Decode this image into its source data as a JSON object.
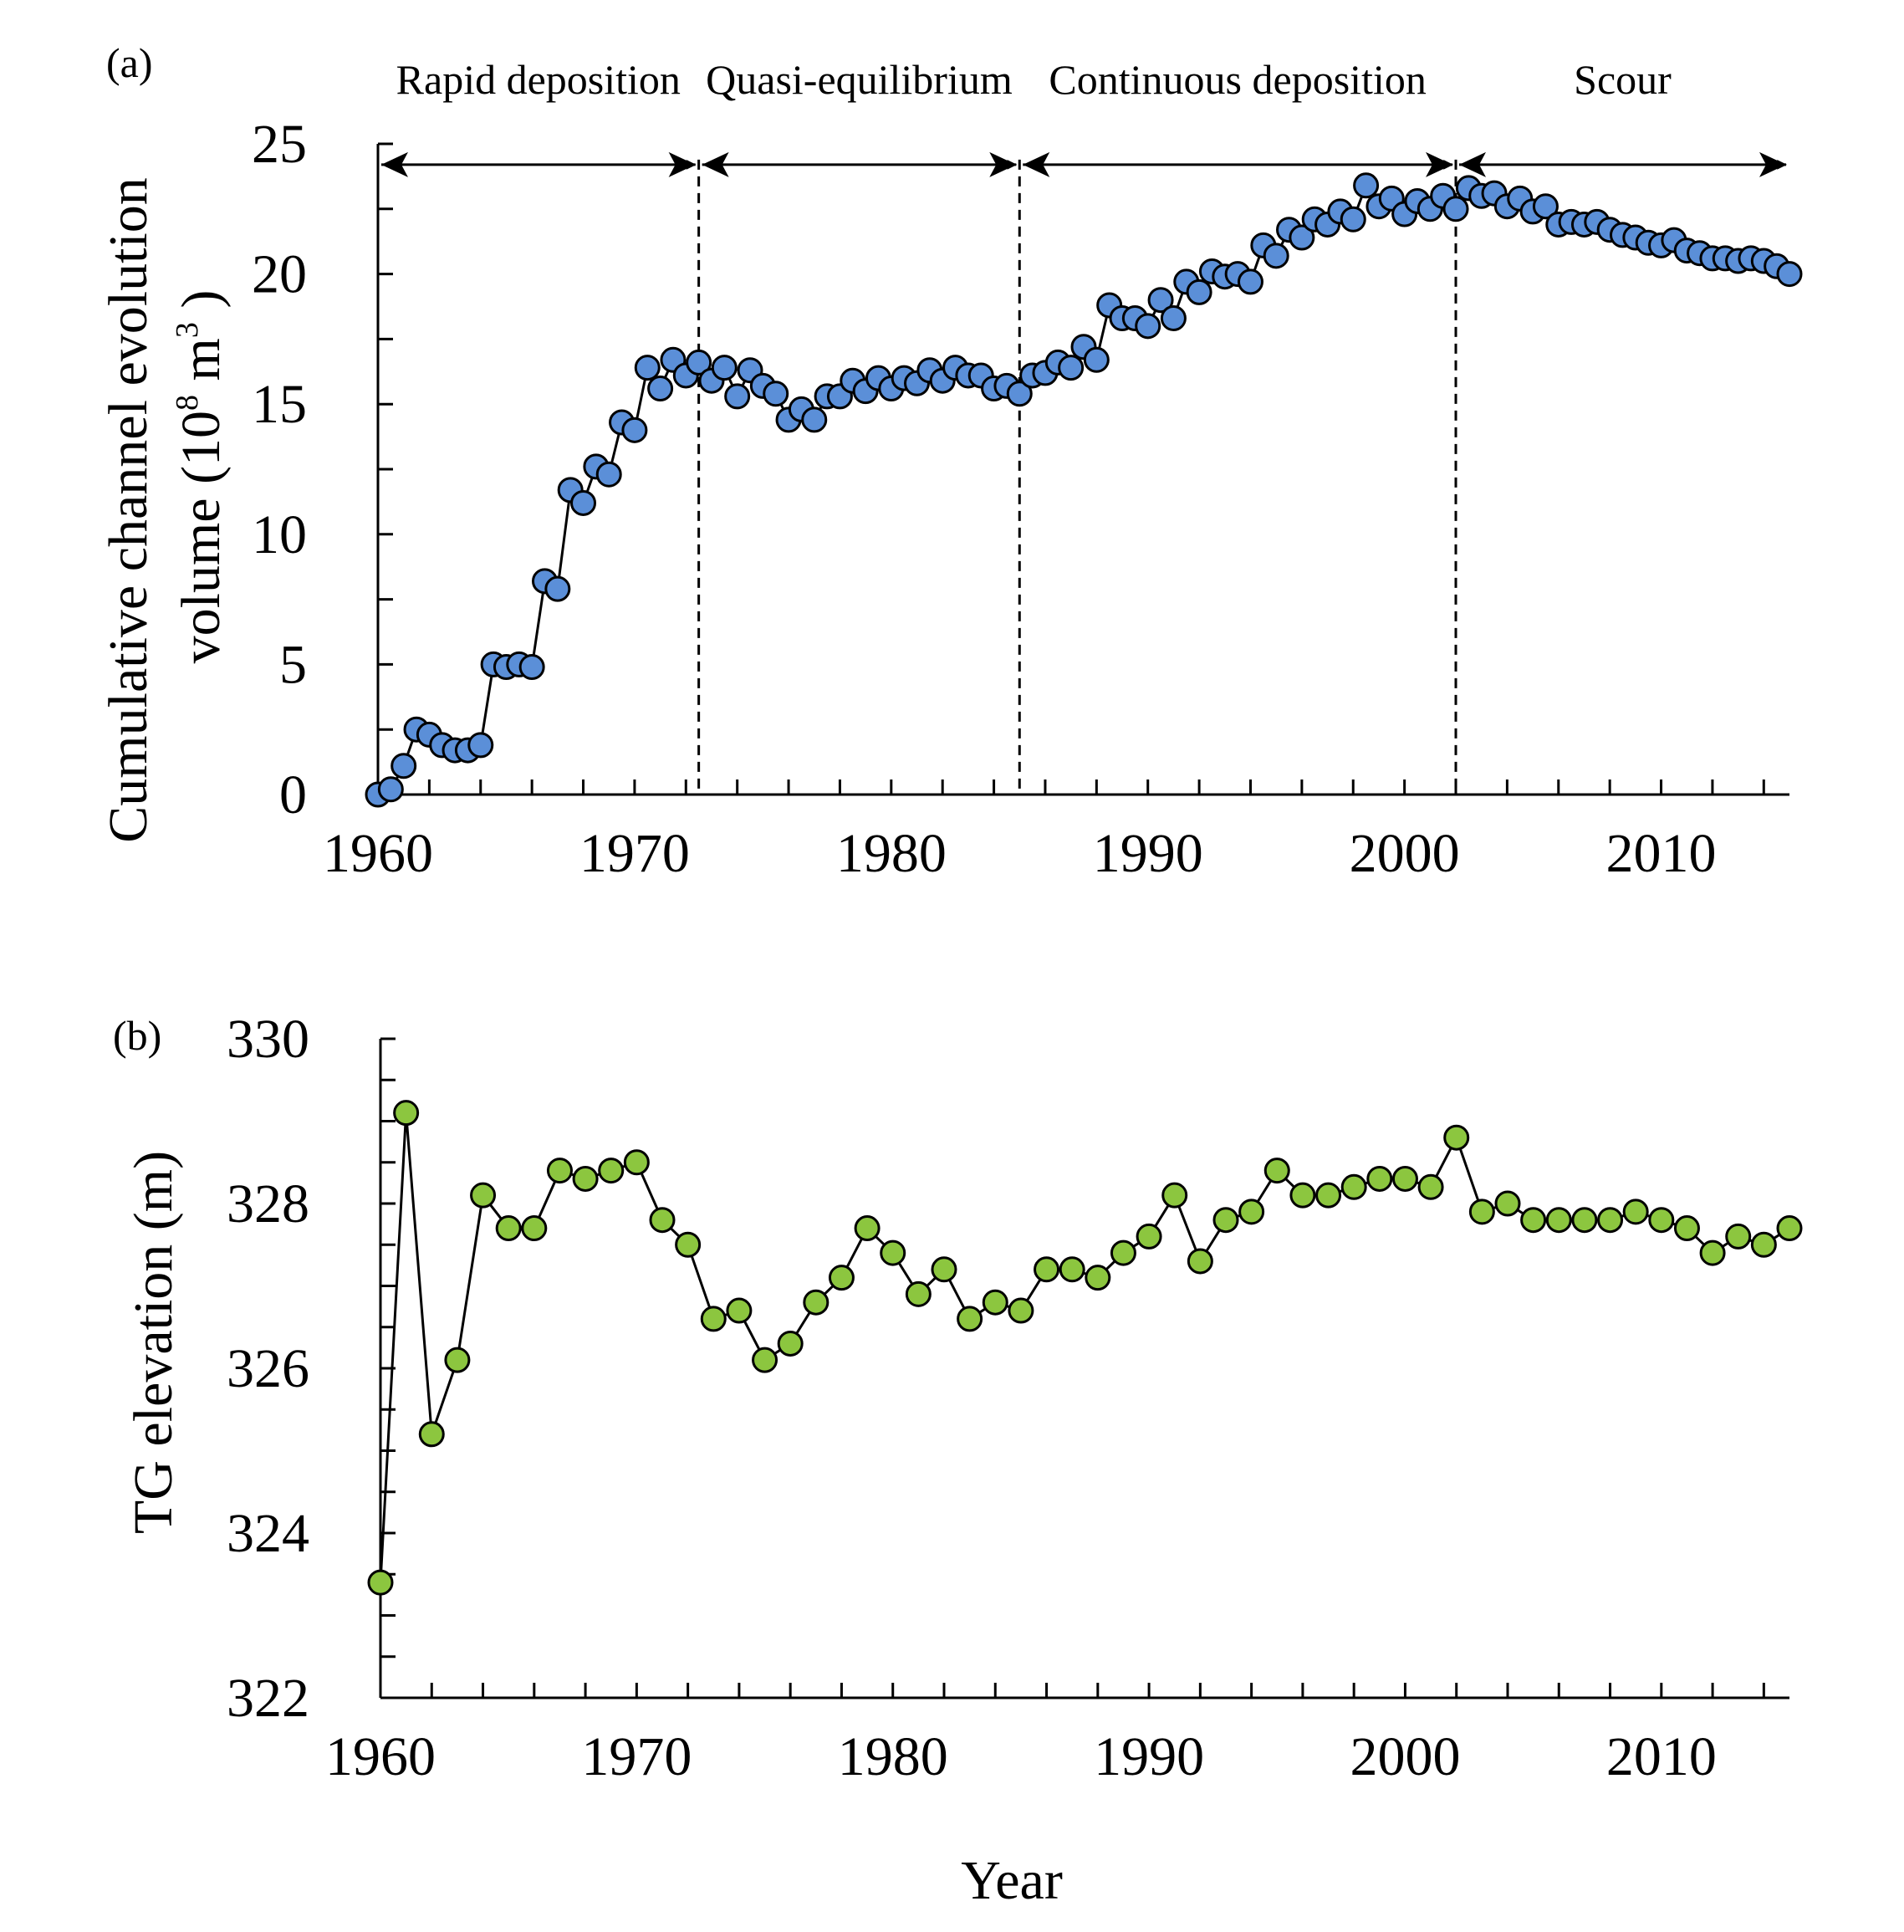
{
  "figure": {
    "xlabel": "Year",
    "line_color": "#000000",
    "charts": [
      {
        "panel_label": "(a)",
        "ylabel_line1": "Cumulative  channel  evolution",
        "ylabel_line2_prefix": "volume  (10",
        "ylabel_sup1": "8",
        "ylabel_mid": " m",
        "ylabel_sup2": "3",
        "ylabel_suffix": " )"
      },
      {
        "panel_label": "(b)",
        "ylabel": "TG elevation  (m)"
      }
    ]
  },
  "chart_data": [
    {
      "type": "line",
      "title": "",
      "xlabel": "",
      "ylabel": "Cumulative channel evolution volume (10^8 m^3)",
      "xlim": [
        1960,
        2015
      ],
      "ylim": [
        0,
        25
      ],
      "xticks": [
        1960,
        1970,
        1980,
        1990,
        2000,
        2010
      ],
      "yticks": [
        0,
        5,
        10,
        15,
        20,
        25
      ],
      "marker_color": "#5b8fd8",
      "grid": false,
      "phases": [
        {
          "label": "Rapid deposition",
          "start": 1960,
          "end": 1972.5
        },
        {
          "label": "Quasi-equilibrium",
          "start": 1972.5,
          "end": 1985
        },
        {
          "label": "Continuous deposition",
          "start": 1985,
          "end": 2002
        },
        {
          "label": "Scour",
          "start": 2002,
          "end": 2015
        }
      ],
      "phase_boundaries": [
        1972.5,
        1985,
        2002
      ],
      "series": [
        {
          "x": [
            1960,
            1960.5,
            1961,
            1961.5,
            1962,
            1962.5,
            1963,
            1963.5,
            1964,
            1964.5,
            1965,
            1965.5,
            1966,
            1966.5,
            1967,
            1967.5,
            1968,
            1968.5,
            1969,
            1969.5,
            1970,
            1970.5,
            1971,
            1971.5,
            1972,
            1972.5,
            1973,
            1973.5,
            1974,
            1974.5,
            1975,
            1975.5,
            1976,
            1976.5,
            1977,
            1977.5,
            1978,
            1978.5,
            1979,
            1979.5,
            1980,
            1980.5,
            1981,
            1981.5,
            1982,
            1982.5,
            1983,
            1983.5,
            1984,
            1984.5,
            1985,
            1985.5,
            1986,
            1986.5,
            1987,
            1987.5,
            1988,
            1988.5,
            1989,
            1989.5,
            1990,
            1990.5,
            1991,
            1991.5,
            1992,
            1992.5,
            1993,
            1993.5,
            1994,
            1994.5,
            1995,
            1995.5,
            1996,
            1996.5,
            1997,
            1997.5,
            1998,
            1998.5,
            1999,
            1999.5,
            2000,
            2000.5,
            2001,
            2001.5,
            2002,
            2002.5,
            2003,
            2003.5,
            2004,
            2004.5,
            2005,
            2005.5,
            2006,
            2006.5,
            2007,
            2007.5,
            2008,
            2008.5,
            2009,
            2009.5,
            2010,
            2010.5,
            2011,
            2011.5,
            2012,
            2012.5,
            2013,
            2013.5,
            2014,
            2014.5,
            2015
          ],
          "y": [
            0.0,
            0.2,
            1.1,
            2.5,
            2.3,
            1.9,
            1.7,
            1.7,
            1.9,
            5.0,
            4.9,
            5.0,
            4.9,
            8.2,
            7.9,
            11.7,
            11.2,
            12.6,
            12.3,
            14.3,
            14.0,
            16.4,
            15.6,
            16.7,
            16.1,
            16.6,
            15.9,
            16.4,
            15.3,
            16.3,
            15.7,
            15.4,
            14.4,
            14.8,
            14.4,
            15.3,
            15.3,
            15.9,
            15.5,
            16.0,
            15.6,
            16.0,
            15.8,
            16.3,
            15.9,
            16.4,
            16.1,
            16.1,
            15.6,
            15.7,
            15.4,
            16.1,
            16.2,
            16.6,
            16.4,
            17.2,
            16.7,
            18.8,
            18.3,
            18.3,
            18.0,
            19.0,
            18.3,
            19.7,
            19.3,
            20.1,
            19.9,
            20.0,
            19.7,
            21.1,
            20.7,
            21.7,
            21.4,
            22.1,
            21.9,
            22.4,
            22.1,
            23.4,
            22.6,
            22.9,
            22.3,
            22.8,
            22.5,
            23.0,
            22.5,
            23.3,
            23.0,
            23.1,
            22.6,
            22.9,
            22.4,
            22.6,
            21.9,
            22.0,
            21.9,
            22.0,
            21.7,
            21.5,
            21.4,
            21.2,
            21.1,
            21.3,
            20.9,
            20.8,
            20.6,
            20.6,
            20.5,
            20.6,
            20.5,
            20.3,
            20.0
          ]
        }
      ]
    },
    {
      "type": "line",
      "title": "",
      "xlabel": "Year",
      "ylabel": "TG elevation (m)",
      "xlim": [
        1960,
        2015
      ],
      "ylim": [
        322,
        330
      ],
      "xticks": [
        1960,
        1970,
        1980,
        1990,
        2000,
        2010
      ],
      "yticks": [
        322,
        324,
        326,
        328,
        330
      ],
      "marker_color": "#8cc63f",
      "grid": false,
      "series": [
        {
          "x": [
            1960,
            1961,
            1962,
            1963,
            1964,
            1965,
            1966,
            1967,
            1968,
            1969,
            1970,
            1971,
            1972,
            1973,
            1974,
            1975,
            1976,
            1977,
            1978,
            1979,
            1980,
            1981,
            1982,
            1983,
            1984,
            1985,
            1986,
            1987,
            1988,
            1989,
            1990,
            1991,
            1992,
            1993,
            1994,
            1995,
            1996,
            1997,
            1998,
            1999,
            2000,
            2001,
            2002,
            2003,
            2004,
            2005,
            2006,
            2007,
            2008,
            2009,
            2010,
            2011,
            2012,
            2013,
            2014,
            2015
          ],
          "y": [
            323.4,
            329.1,
            325.2,
            326.1,
            328.1,
            327.7,
            327.7,
            328.4,
            328.3,
            328.4,
            328.5,
            327.8,
            327.5,
            326.6,
            326.7,
            326.1,
            326.3,
            326.8,
            327.1,
            327.7,
            327.4,
            326.9,
            327.2,
            326.6,
            326.8,
            326.7,
            327.2,
            327.2,
            327.1,
            327.4,
            327.6,
            328.1,
            327.3,
            327.8,
            327.9,
            328.4,
            328.1,
            328.1,
            328.2,
            328.3,
            328.3,
            328.2,
            328.8,
            327.9,
            328.0,
            327.8,
            327.8,
            327.8,
            327.8,
            327.9,
            327.8,
            327.7,
            327.4,
            327.6,
            327.5,
            327.7
          ]
        }
      ]
    }
  ]
}
